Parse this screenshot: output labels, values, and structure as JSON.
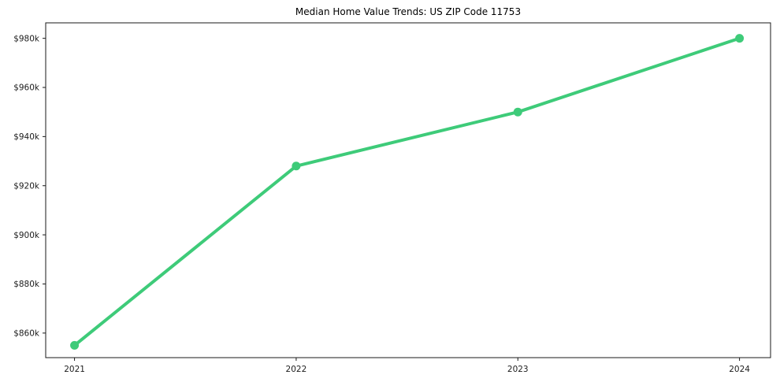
{
  "figure": {
    "background": "#ffffff"
  },
  "chart_data": {
    "type": "line",
    "title": "Median Home Value Trends: US ZIP Code 11753",
    "xlabel": "",
    "ylabel": "",
    "x": [
      2021,
      2022,
      2023,
      2024
    ],
    "x_tick_labels": [
      "2021",
      "2022",
      "2023",
      "2024"
    ],
    "series": [
      {
        "name": "Median Home Value",
        "values": [
          855000,
          928000,
          950000,
          980000
        ],
        "color": "#3ecb79",
        "marker": "circle",
        "line_width": 4
      }
    ],
    "y_ticks": [
      860000,
      880000,
      900000,
      920000,
      940000,
      960000,
      980000
    ],
    "y_tick_labels": [
      "$860k",
      "$880k",
      "$900k",
      "$920k",
      "$940k",
      "$960k",
      "$980k"
    ],
    "ylim": [
      850000,
      986300
    ],
    "xlim": [
      2020.87,
      2024.14
    ],
    "grid": false,
    "legend": "none",
    "axis_color": "#1a1a1a",
    "tick_label_color": "#1c1c1c"
  }
}
